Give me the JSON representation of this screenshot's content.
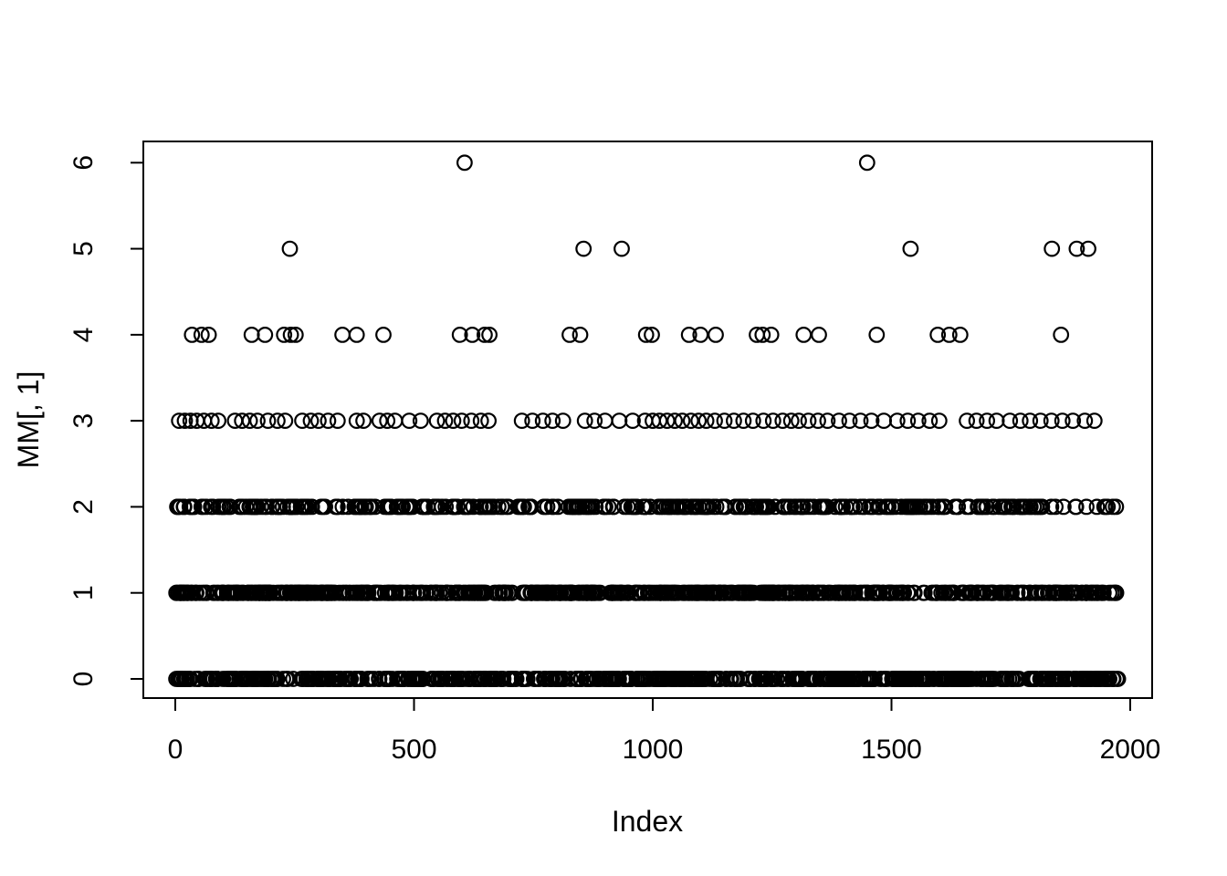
{
  "chart_data": {
    "type": "scatter",
    "title": "",
    "xlabel": "Index",
    "ylabel": "MM[, 1]",
    "xlim": [
      0,
      2000
    ],
    "ylim": [
      0,
      6
    ],
    "x_ticks": [
      0,
      500,
      1000,
      1500,
      2000
    ],
    "y_ticks": [
      0,
      1,
      2,
      3,
      4,
      5,
      6
    ],
    "grid": false,
    "legend": false,
    "marker": "open-circle",
    "marker_color": "#000000",
    "background_color": "#ffffff",
    "description": "Integer count values (0-6, Poisson-like) plotted against observation index 1-1975; rows at y=0,1,2 are nearly continuous bands of overlapping open circles, rows y=3..6 are progressively sparser.",
    "points_by_level": [
      {
        "y": 6,
        "x": [
          606,
          1449
        ]
      },
      {
        "y": 5,
        "x": [
          240,
          855,
          935,
          1540,
          1836,
          1888,
          1912
        ]
      },
      {
        "y": 4,
        "x": [
          35,
          55,
          70,
          160,
          188,
          228,
          242,
          252,
          350,
          380,
          436,
          596,
          622,
          648,
          658,
          826,
          848,
          986,
          998,
          1076,
          1100,
          1132,
          1218,
          1230,
          1248,
          1316,
          1348,
          1469,
          1597,
          1621,
          1644,
          1855
        ]
      },
      {
        "y": 3,
        "x": [
          8,
          20,
          32,
          45,
          60,
          76,
          90,
          125,
          140,
          156,
          172,
          194,
          214,
          230,
          266,
          284,
          300,
          320,
          340,
          380,
          394,
          428,
          444,
          460,
          490,
          514,
          548,
          565,
          582,
          600,
          620,
          640,
          656,
          726,
          748,
          770,
          790,
          812,
          858,
          878,
          900,
          930,
          958,
          984,
          1000,
          1014,
          1030,
          1046,
          1062,
          1080,
          1096,
          1112,
          1130,
          1150,
          1170,
          1190,
          1210,
          1232,
          1252,
          1272,
          1290,
          1306,
          1326,
          1346,
          1366,
          1390,
          1412,
          1435,
          1458,
          1484,
          1512,
          1534,
          1556,
          1580,
          1600,
          1658,
          1678,
          1700,
          1720,
          1748,
          1770,
          1790,
          1812,
          1835,
          1858,
          1880,
          1905,
          1925
        ]
      },
      {
        "y": 2,
        "dense": true,
        "count": 368,
        "x_range": [
          1,
          1975
        ],
        "seed": 22
      },
      {
        "y": 1,
        "dense": true,
        "count": 715,
        "x_range": [
          1,
          1975
        ],
        "seed": 11
      },
      {
        "y": 0,
        "dense": true,
        "count": 728,
        "x_range": [
          1,
          1975
        ],
        "seed": 7
      }
    ]
  }
}
